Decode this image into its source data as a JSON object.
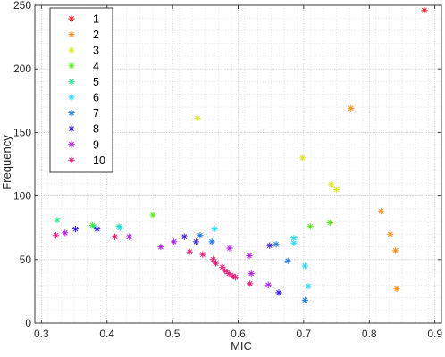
{
  "chart_data": {
    "type": "scatter",
    "title": "",
    "xlabel": "MIC",
    "ylabel": "Frequency",
    "xlim": [
      0.29,
      0.91
    ],
    "ylim": [
      0,
      250
    ],
    "xticks": [
      0.3,
      0.4,
      0.5,
      0.6,
      0.7,
      0.8,
      0.9
    ],
    "xtick_labels": [
      "0.3",
      "0.4",
      "0.5",
      "0.6",
      "0.7",
      "0.8",
      "0.9"
    ],
    "yticks": [
      0,
      50,
      100,
      150,
      200,
      250
    ],
    "ytick_labels": [
      "0",
      "50",
      "100",
      "150",
      "200",
      "250"
    ],
    "grid": true,
    "minor_grid": true,
    "legend_position": "top-left",
    "marker": "asterisk",
    "series": [
      {
        "name": "1",
        "color": "#e8191e",
        "points": [
          [
            0.884,
            246
          ]
        ]
      },
      {
        "name": "2",
        "color": "#f5921e",
        "points": [
          [
            0.772,
            169
          ],
          [
            0.818,
            88
          ],
          [
            0.832,
            70
          ],
          [
            0.84,
            57
          ],
          [
            0.842,
            27
          ]
        ]
      },
      {
        "name": "3",
        "color": "#d8e81e",
        "points": [
          [
            0.538,
            161
          ],
          [
            0.698,
            130
          ],
          [
            0.742,
            109
          ],
          [
            0.75,
            105
          ]
        ]
      },
      {
        "name": "4",
        "color": "#5ce81e",
        "points": [
          [
            0.47,
            85
          ],
          [
            0.378,
            77
          ],
          [
            0.71,
            76
          ],
          [
            0.74,
            79
          ]
        ]
      },
      {
        "name": "5",
        "color": "#1ee88a",
        "points": [
          [
            0.324,
            81
          ],
          [
            0.38,
            76
          ],
          [
            0.418,
            76
          ]
        ]
      },
      {
        "name": "6",
        "color": "#1edcf0",
        "points": [
          [
            0.42,
            75
          ],
          [
            0.564,
            74
          ],
          [
            0.685,
            67
          ],
          [
            0.685,
            63
          ],
          [
            0.702,
            45
          ],
          [
            0.707,
            29
          ]
        ]
      },
      {
        "name": "7",
        "color": "#1e7ae8",
        "points": [
          [
            0.542,
            69
          ],
          [
            0.56,
            64
          ],
          [
            0.658,
            62
          ],
          [
            0.676,
            49
          ],
          [
            0.702,
            18
          ]
        ]
      },
      {
        "name": "8",
        "color": "#3c1ee8",
        "points": [
          [
            0.352,
            74
          ],
          [
            0.385,
            74
          ],
          [
            0.518,
            68
          ],
          [
            0.536,
            64
          ],
          [
            0.648,
            61
          ],
          [
            0.662,
            24
          ]
        ]
      },
      {
        "name": "9",
        "color": "#b81ee8",
        "points": [
          [
            0.336,
            71
          ],
          [
            0.434,
            68
          ],
          [
            0.482,
            60
          ],
          [
            0.502,
            64
          ],
          [
            0.587,
            59
          ],
          [
            0.617,
            53
          ],
          [
            0.62,
            39
          ],
          [
            0.646,
            30
          ]
        ]
      },
      {
        "name": "10",
        "color": "#e81e78",
        "points": [
          [
            0.322,
            69
          ],
          [
            0.412,
            68
          ],
          [
            0.526,
            56
          ],
          [
            0.546,
            54
          ],
          [
            0.562,
            50
          ],
          [
            0.566,
            47
          ],
          [
            0.576,
            44
          ],
          [
            0.58,
            41
          ],
          [
            0.586,
            39
          ],
          [
            0.592,
            37
          ],
          [
            0.596,
            36
          ],
          [
            0.618,
            31
          ]
        ]
      }
    ]
  }
}
